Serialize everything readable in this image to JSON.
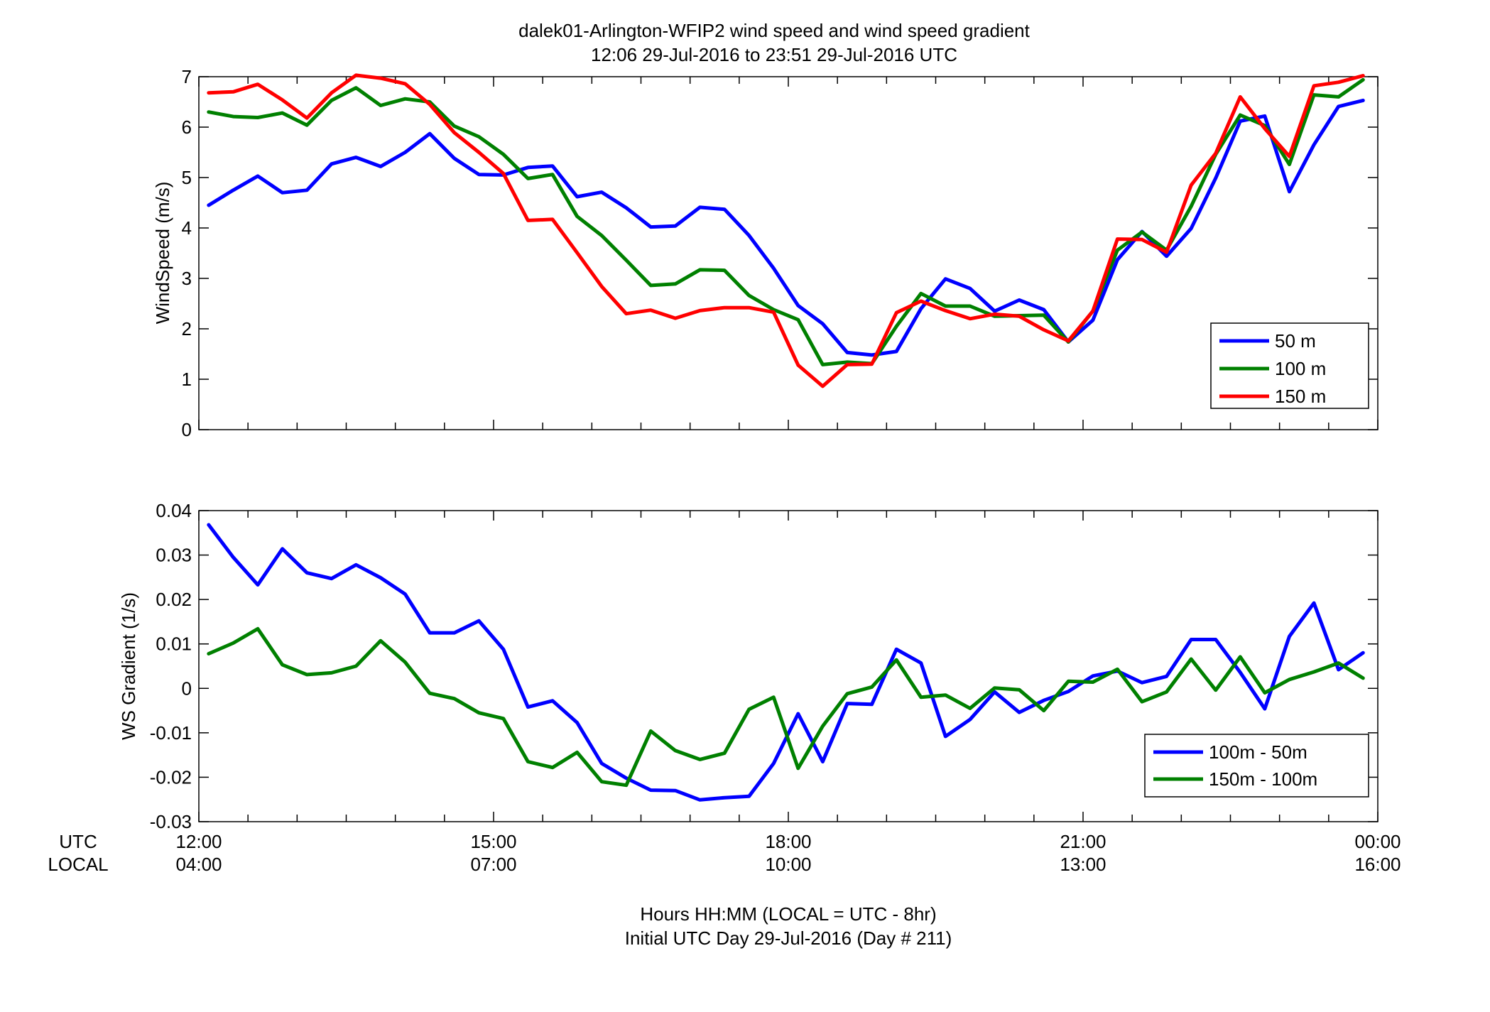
{
  "figure": {
    "title_line1": "dalek01-Arlington-WFIP2  wind speed and wind speed gradient",
    "title_line2": "12:06 29-Jul-2016 to 23:51 29-Jul-2016  UTC",
    "xlabel_line1": "Hours HH:MM  (LOCAL = UTC - 8hr)",
    "xlabel_line2": "Initial UTC Day 29-Jul-2016 (Day # 211)",
    "utc_label": "UTC",
    "local_label": "LOCAL",
    "x_ticks_utc": [
      "12:00",
      "15:00",
      "18:00",
      "21:00",
      "00:00"
    ],
    "x_ticks_local": [
      "04:00",
      "07:00",
      "10:00",
      "13:00",
      "16:00"
    ]
  },
  "chart_data": [
    {
      "type": "line",
      "ylabel": "WindSpeed (m/s)",
      "xlim": [
        12,
        24
      ],
      "ylim": [
        0,
        7
      ],
      "y_ticks": [
        "0",
        "1",
        "2",
        "3",
        "4",
        "5",
        "6",
        "7"
      ],
      "legend_position": "bottom-right",
      "x_start_hour": 12.1,
      "x_step_hours": 0.25,
      "series": [
        {
          "name": "50 m",
          "color": "#0000ff",
          "values": [
            4.45,
            4.75,
            5.03,
            4.7,
            4.75,
            5.27,
            5.4,
            5.22,
            5.5,
            5.87,
            5.38,
            5.06,
            5.05,
            5.2,
            5.23,
            4.62,
            4.71,
            4.4,
            4.02,
            4.04,
            4.41,
            4.37,
            3.85,
            3.2,
            2.46,
            2.1,
            1.53,
            1.48,
            1.55,
            2.4,
            2.99,
            2.8,
            2.35,
            2.57,
            2.38,
            1.74,
            2.17,
            3.37,
            3.93,
            3.44,
            3.99,
            4.99,
            6.12,
            6.22,
            4.72,
            5.65,
            6.41,
            6.53
          ]
        },
        {
          "name": "100 m",
          "color": "#008000",
          "values": [
            6.3,
            6.21,
            6.19,
            6.28,
            6.04,
            6.53,
            6.78,
            6.43,
            6.56,
            6.5,
            6.02,
            5.81,
            5.46,
            4.98,
            5.06,
            4.23,
            3.85,
            3.36,
            2.86,
            2.89,
            3.17,
            3.16,
            2.66,
            2.38,
            2.18,
            1.29,
            1.34,
            1.31,
            2.05,
            2.7,
            2.45,
            2.45,
            2.25,
            2.26,
            2.27,
            1.74,
            2.35,
            3.56,
            3.92,
            3.56,
            4.43,
            5.46,
            6.24,
            6.03,
            5.26,
            6.64,
            6.6,
            6.94
          ]
        },
        {
          "name": "150 m",
          "color": "#ff0000",
          "values": [
            6.68,
            6.7,
            6.85,
            6.54,
            6.18,
            6.68,
            7.03,
            6.97,
            6.86,
            6.45,
            5.89,
            5.5,
            5.08,
            4.15,
            4.17,
            3.51,
            2.84,
            2.3,
            2.37,
            2.21,
            2.36,
            2.42,
            2.42,
            2.33,
            1.28,
            0.86,
            1.29,
            1.3,
            2.32,
            2.55,
            2.36,
            2.2,
            2.29,
            2.25,
            1.98,
            1.76,
            2.35,
            3.78,
            3.77,
            3.52,
            4.85,
            5.48,
            6.6,
            5.97,
            5.42,
            6.82,
            6.89,
            7.02
          ]
        }
      ]
    },
    {
      "type": "line",
      "ylabel": "WS Gradient (1/s)",
      "xlim": [
        12,
        24
      ],
      "ylim": [
        -0.03,
        0.04
      ],
      "y_ticks": [
        "-0.03",
        "-0.02",
        "-0.01",
        "0",
        "0.01",
        "0.02",
        "0.03",
        "0.04"
      ],
      "legend_position": "bottom-right",
      "x_start_hour": 12.1,
      "x_step_hours": 0.25,
      "series": [
        {
          "name": "100m - 50m",
          "color": "#0000ff",
          "values": [
            0.0368,
            0.0295,
            0.0233,
            0.0314,
            0.026,
            0.0247,
            0.0278,
            0.0249,
            0.0212,
            0.0125,
            0.0125,
            0.0152,
            0.0088,
            -0.0042,
            -0.0028,
            -0.0077,
            -0.0169,
            -0.0202,
            -0.0229,
            -0.023,
            -0.0251,
            -0.0246,
            -0.0243,
            -0.0169,
            -0.0057,
            -0.0165,
            -0.0034,
            -0.0036,
            0.0088,
            0.0057,
            -0.0108,
            -0.007,
            -0.0008,
            -0.0054,
            -0.0027,
            -0.0007,
            0.0028,
            0.0039,
            0.0013,
            0.0027,
            0.011,
            0.011,
            0.0036,
            -0.0046,
            0.0117,
            0.0192,
            0.0042,
            0.008
          ]
        },
        {
          "name": "150m - 100m",
          "color": "#008000",
          "values": [
            0.0078,
            0.0102,
            0.0134,
            0.0053,
            0.0031,
            0.0035,
            0.005,
            0.0107,
            0.0059,
            -0.0011,
            -0.0023,
            -0.0055,
            -0.0068,
            -0.0165,
            -0.0178,
            -0.0144,
            -0.021,
            -0.0218,
            -0.0096,
            -0.014,
            -0.016,
            -0.0146,
            -0.0047,
            -0.002,
            -0.018,
            -0.0085,
            -0.0012,
            0.0003,
            0.0064,
            -0.002,
            -0.0015,
            -0.0045,
            0.0001,
            -0.0003,
            -0.005,
            0.0016,
            0.0014,
            0.0043,
            -0.003,
            -0.0008,
            0.0066,
            -0.0004,
            0.0071,
            -0.001,
            0.002,
            0.0037,
            0.0057,
            0.0023
          ]
        }
      ]
    }
  ]
}
